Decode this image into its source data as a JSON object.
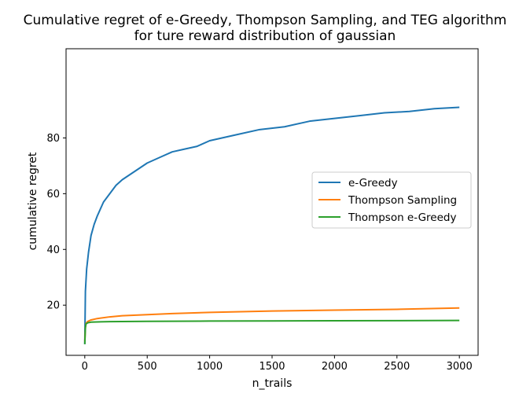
{
  "chart_data": {
    "type": "line",
    "title": "Cumulative regret of e-Greedy, Thompson Sampling, and TEG algorithm",
    "subtitle": "for ture reward distribution of gaussian",
    "xlabel": "n_trails",
    "ylabel": "cumulative regret",
    "xlim": [
      -150,
      3150
    ],
    "ylim": [
      2,
      112
    ],
    "xticks": [
      0,
      500,
      1000,
      1500,
      2000,
      2500,
      3000
    ],
    "yticks": [
      20,
      40,
      60,
      80
    ],
    "grid": false,
    "legend_position": "center-right",
    "series": [
      {
        "name": "e-Greedy",
        "color": "#1f77b4",
        "x": [
          0,
          5,
          15,
          30,
          50,
          75,
          100,
          150,
          200,
          250,
          300,
          400,
          500,
          600,
          700,
          800,
          900,
          1000,
          1200,
          1400,
          1600,
          1800,
          2000,
          2200,
          2400,
          2600,
          2800,
          3000
        ],
        "y": [
          6,
          25,
          33,
          39,
          45,
          49,
          52,
          57,
          60,
          63,
          65,
          68,
          71,
          73,
          75,
          76,
          77,
          79,
          81,
          83,
          84,
          86,
          87,
          88,
          89,
          89.5,
          90.5,
          91
        ]
      },
      {
        "name": "Thompson Sampling",
        "color": "#ff7f0e",
        "x": [
          0,
          5,
          10,
          25,
          50,
          100,
          200,
          300,
          500,
          700,
          1000,
          1500,
          2000,
          2500,
          3000
        ],
        "y": [
          7,
          12,
          13.5,
          14.2,
          14.7,
          15.2,
          15.8,
          16.2,
          16.6,
          17,
          17.4,
          17.9,
          18.2,
          18.5,
          19
        ]
      },
      {
        "name": "Thompson e-Greedy",
        "color": "#2ca02c",
        "x": [
          0,
          5,
          10,
          25,
          50,
          100,
          200,
          500,
          1000,
          1500,
          2000,
          2500,
          3000
        ],
        "y": [
          6,
          12,
          13.3,
          13.7,
          13.9,
          14,
          14.1,
          14.2,
          14.3,
          14.35,
          14.4,
          14.45,
          14.5
        ]
      }
    ]
  }
}
